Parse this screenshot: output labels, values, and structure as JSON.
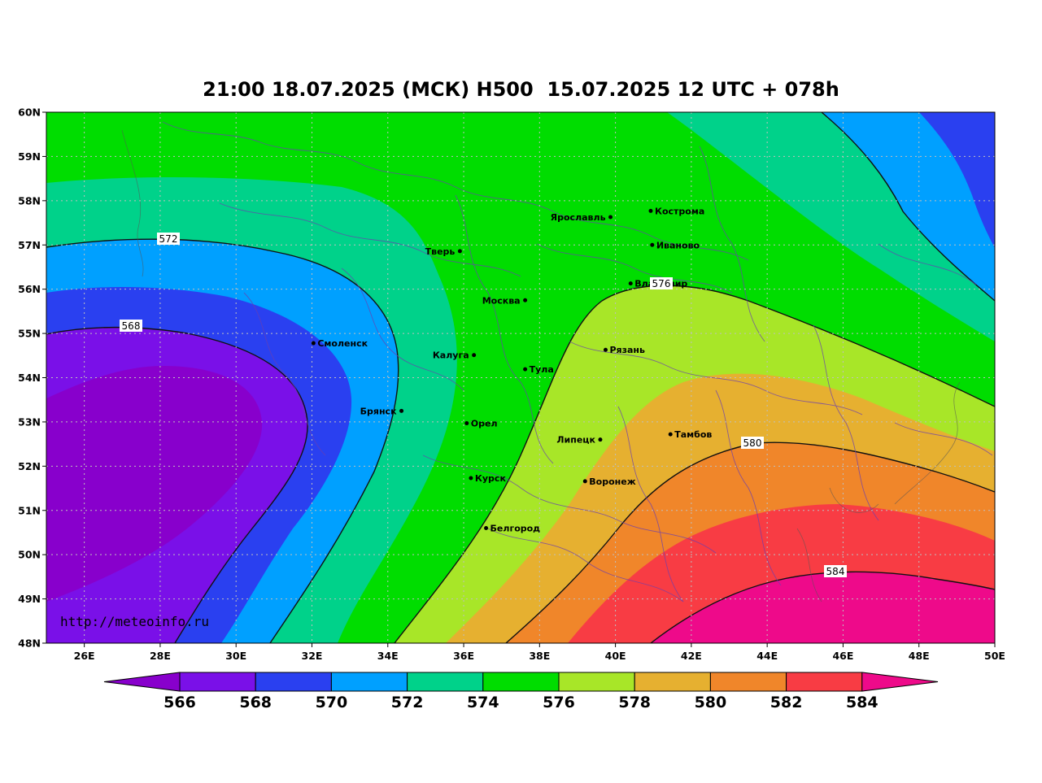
{
  "title": "21:00 18.07.2025 (МСК) H500  15.07.2025 12 UTC + 078h",
  "credit": "http://meteoinfo.ru",
  "lat_ticks": [
    "60N",
    "59N",
    "58N",
    "57N",
    "56N",
    "55N",
    "54N",
    "53N",
    "52N",
    "51N",
    "50N",
    "49N",
    "48N"
  ],
  "lon_ticks": [
    "26E",
    "28E",
    "30E",
    "32E",
    "34E",
    "36E",
    "38E",
    "40E",
    "42E",
    "44E",
    "46E",
    "48E",
    "50E"
  ],
  "colorbar": {
    "labels": [
      "566",
      "568",
      "570",
      "572",
      "574",
      "576",
      "578",
      "580",
      "582",
      "584"
    ],
    "colors": [
      "#8800cc",
      "#7a10e8",
      "#2a40f0",
      "#00a0ff",
      "#00d28a",
      "#00dd00",
      "#a8e628",
      "#e6b030",
      "#f0862a",
      "#f83c44",
      "#ee0a8a"
    ]
  },
  "contour_labels": [
    "572",
    "568",
    "576",
    "580",
    "584"
  ],
  "cities": [
    {
      "name": "Кострома",
      "lon": 40.93,
      "lat": 57.77
    },
    {
      "name": "Ярославль",
      "lon": 39.87,
      "lat": 57.63
    },
    {
      "name": "Иваново",
      "lon": 40.97,
      "lat": 57.0
    },
    {
      "name": "Тверь",
      "lon": 35.9,
      "lat": 56.86
    },
    {
      "name": "Владимир",
      "lon": 40.4,
      "lat": 56.13
    },
    {
      "name": "Москва",
      "lon": 37.62,
      "lat": 55.75
    },
    {
      "name": "Смоленск",
      "lon": 32.04,
      "lat": 54.78
    },
    {
      "name": "Калуга",
      "lon": 36.27,
      "lat": 54.51
    },
    {
      "name": "Рязань",
      "lon": 39.74,
      "lat": 54.63
    },
    {
      "name": "Тула",
      "lon": 37.62,
      "lat": 54.19
    },
    {
      "name": "Брянск",
      "lon": 34.36,
      "lat": 53.25
    },
    {
      "name": "Орел",
      "lon": 36.08,
      "lat": 52.97
    },
    {
      "name": "Тамбов",
      "lon": 41.45,
      "lat": 52.72
    },
    {
      "name": "Липецк",
      "lon": 39.6,
      "lat": 52.6
    },
    {
      "name": "Курск",
      "lon": 36.19,
      "lat": 51.73
    },
    {
      "name": "Воронеж",
      "lon": 39.2,
      "lat": 51.66
    },
    {
      "name": "Белгород",
      "lon": 36.59,
      "lat": 50.6
    }
  ]
}
